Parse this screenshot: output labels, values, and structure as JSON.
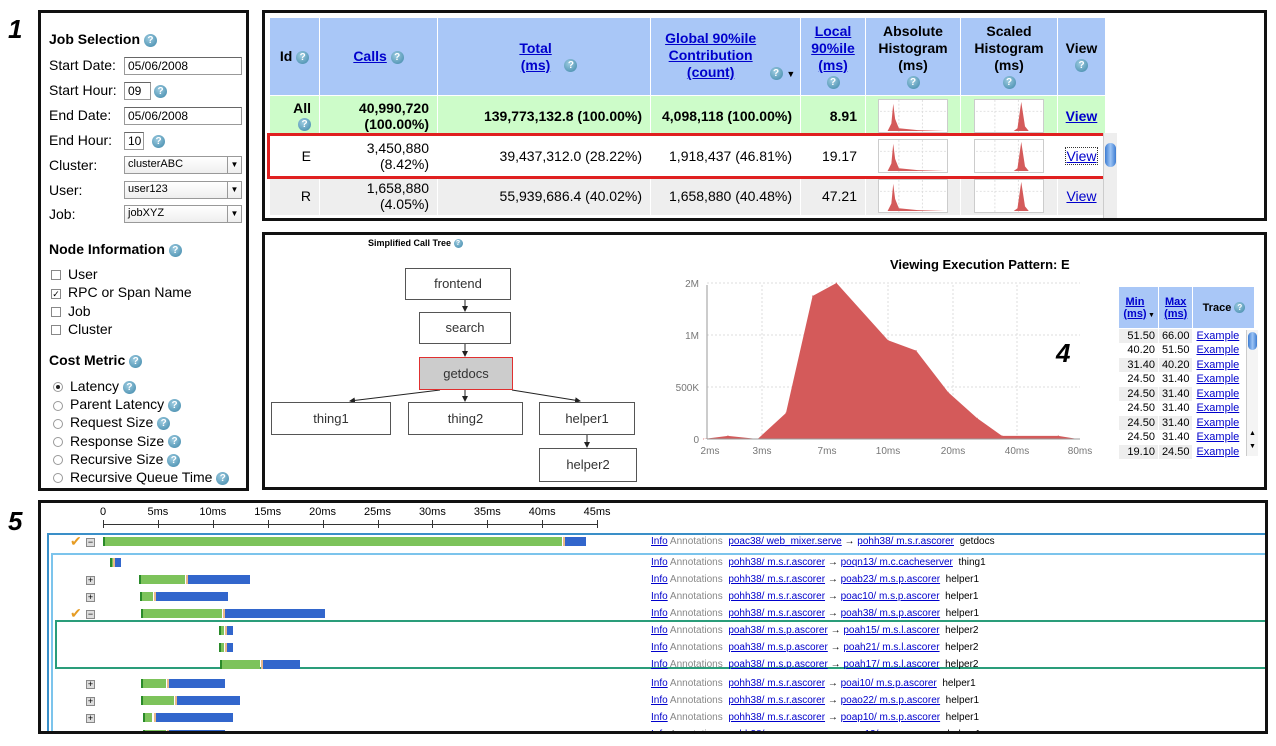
{
  "panel_numbers": [
    "1",
    "2",
    "3",
    "4",
    "5"
  ],
  "job_selection": {
    "title": "Job Selection",
    "start_date_label": "Start Date:",
    "start_date": "05/06/2008",
    "start_hour_label": "Start Hour:",
    "start_hour": "09",
    "end_date_label": "End Date:",
    "end_date": "05/06/2008",
    "end_hour_label": "End Hour:",
    "end_hour": "10",
    "cluster_label": "Cluster:",
    "cluster": "clusterABC",
    "user_label": "User:",
    "user": "user123",
    "job_label": "Job:",
    "job": "jobXYZ"
  },
  "node_information": {
    "title": "Node Information",
    "options": [
      {
        "label": "User",
        "checked": false
      },
      {
        "label": "RPC or Span Name",
        "checked": true
      },
      {
        "label": "Job",
        "checked": false
      },
      {
        "label": "Cluster",
        "checked": false
      }
    ]
  },
  "cost_metric": {
    "title": "Cost Metric",
    "options": [
      {
        "label": "Latency",
        "selected": true,
        "help": true
      },
      {
        "label": "Parent Latency",
        "selected": false,
        "help": true
      },
      {
        "label": "Request Size",
        "selected": false,
        "help": true
      },
      {
        "label": "Response Size",
        "selected": false,
        "help": true
      },
      {
        "label": "Recursive Size",
        "selected": false,
        "help": true
      },
      {
        "label": "Recursive Queue Time",
        "selected": false,
        "help": true
      }
    ]
  },
  "summary_table": {
    "headers": {
      "id": "Id",
      "calls": "Calls",
      "total": "Total (ms)",
      "global": "Global 90%ile Contribution (count)",
      "local": "Local 90%ile (ms)",
      "abs_hist": "Absolute Histogram (ms)",
      "scaled_hist": "Scaled Histogram (ms)",
      "view": "View"
    },
    "rows": [
      {
        "id": "All",
        "calls": "40,990,720 (100.00%)",
        "total": "139,773,132.8 (100.00%)",
        "global": "4,098,118 (100.00%)",
        "local": "8.91",
        "view": "View"
      },
      {
        "id": "E",
        "calls": "3,450,880 (8.42%)",
        "total": "39,437,312.0 (28.22%)",
        "global": "1,918,437 (46.81%)",
        "local": "19.17",
        "view": "View",
        "selected": true
      },
      {
        "id": "R",
        "calls": "1,658,880 (4.05%)",
        "total": "55,939,686.4 (40.02%)",
        "global": "1,658,880 (40.48%)",
        "local": "47.21",
        "view": "View"
      }
    ]
  },
  "call_tree": {
    "title": "Simplified Call Tree",
    "nodes": [
      "frontend",
      "search",
      "getdocs",
      "thing1",
      "thing2",
      "helper1",
      "helper2"
    ],
    "highlighted": "getdocs"
  },
  "chart_data": {
    "type": "area",
    "title": "Viewing Execution Pattern: E",
    "xlabel": "",
    "ylabel": "",
    "x_ticks": [
      "2ms",
      "3ms",
      "7ms",
      "10ms",
      "20ms",
      "40ms",
      "80ms"
    ],
    "y_ticks": [
      "0",
      "500K",
      "1M",
      "2M"
    ],
    "color": "#d45a5a",
    "grid": true,
    "x": [
      1.9,
      2.3,
      2.9,
      4.1,
      5.8,
      7.4,
      10,
      13.5,
      19,
      26,
      34,
      63,
      78
    ],
    "values": [
      0,
      30000,
      0,
      250000,
      1750000,
      2000000,
      950000,
      850000,
      450000,
      200000,
      30000,
      30000,
      0
    ]
  },
  "trace_table": {
    "headers": {
      "min": "Min (ms)",
      "max": "Max (ms)",
      "trace": "Trace"
    },
    "rows": [
      [
        "51.50",
        "66.00",
        "Example"
      ],
      [
        "40.20",
        "51.50",
        "Example"
      ],
      [
        "31.40",
        "40.20",
        "Example"
      ],
      [
        "24.50",
        "31.40",
        "Example"
      ],
      [
        "24.50",
        "31.40",
        "Example"
      ],
      [
        "24.50",
        "31.40",
        "Example"
      ],
      [
        "24.50",
        "31.40",
        "Example"
      ],
      [
        "24.50",
        "31.40",
        "Example"
      ],
      [
        "19.10",
        "24.50",
        "Example"
      ]
    ]
  },
  "timeline": {
    "ticks": [
      "0",
      "5ms",
      "10ms",
      "15ms",
      "20ms",
      "25ms",
      "30ms",
      "35ms",
      "40ms",
      "45ms"
    ],
    "info_label": "Info",
    "annotations_label": "Annotations",
    "colors": {
      "green": "#7dc35b",
      "blue": "#3266cc"
    },
    "rows": [
      {
        "ctl": "minus",
        "check": true,
        "start": 0,
        "green_end": 41.9,
        "end": 44,
        "from": "poac38/ web_mixer.serve",
        "to": "pohh38/ m.s.r.ascorer",
        "name": "getdocs"
      },
      {
        "ctl": "",
        "check": false,
        "start": 0.6,
        "green_end": 0.9,
        "end": 1.6,
        "from": "pohh38/ m.s.r.ascorer",
        "to": "poqn13/ m.c.cacheserver",
        "name": "thing1"
      },
      {
        "ctl": "plus",
        "check": false,
        "start": 3.3,
        "green_end": 7.6,
        "end": 13.4,
        "from": "pohh38/ m.s.r.ascorer",
        "to": "poab23/ m.s.p.ascorer",
        "name": "helper1"
      },
      {
        "ctl": "plus",
        "check": false,
        "start": 3.4,
        "green_end": 4.6,
        "end": 11.4,
        "from": "pohh38/ m.s.r.ascorer",
        "to": "poac10/ m.s.p.ascorer",
        "name": "helper1"
      },
      {
        "ctl": "minus",
        "check": true,
        "start": 3.5,
        "green_end": 10.9,
        "end": 20.2,
        "from": "pohh38/ m.s.r.ascorer",
        "to": "poah38/ m.s.p.ascorer",
        "name": "helper1"
      },
      {
        "ctl": "",
        "check": false,
        "start": 10.6,
        "green_end": 11.1,
        "end": 11.8,
        "from": "poah38/ m.s.p.ascorer",
        "to": "poah15/ m.s.l.ascorer",
        "name": "helper2"
      },
      {
        "ctl": "",
        "check": false,
        "start": 10.6,
        "green_end": 11.1,
        "end": 11.8,
        "from": "poah38/ m.s.p.ascorer",
        "to": "poah21/ m.s.l.ascorer",
        "name": "helper2"
      },
      {
        "ctl": "",
        "check": false,
        "start": 10.7,
        "green_end": 14.4,
        "end": 17.9,
        "from": "poah38/ m.s.p.ascorer",
        "to": "poah17/ m.s.l.ascorer",
        "name": "helper2"
      },
      {
        "ctl": "plus",
        "check": false,
        "start": 3.5,
        "green_end": 5.8,
        "end": 11.1,
        "from": "pohh38/ m.s.r.ascorer",
        "to": "poai10/ m.s.p.ascorer",
        "name": "helper1"
      },
      {
        "ctl": "plus",
        "check": false,
        "start": 3.5,
        "green_end": 6.6,
        "end": 12.5,
        "from": "pohh38/ m.s.r.ascorer",
        "to": "poao22/ m.s.p.ascorer",
        "name": "helper1"
      },
      {
        "ctl": "plus",
        "check": false,
        "start": 3.6,
        "green_end": 4.6,
        "end": 11.8,
        "from": "pohh38/ m.s.r.ascorer",
        "to": "poap10/ m.s.p.ascorer",
        "name": "helper1"
      },
      {
        "ctl": "plus",
        "check": false,
        "start": 3.6,
        "green_end": 5.8,
        "end": 11.1,
        "from": "pohh38/ m.s.r.ascorer",
        "to": "poaw12/ m.s.p.ascorer",
        "name": "helper1"
      }
    ]
  }
}
